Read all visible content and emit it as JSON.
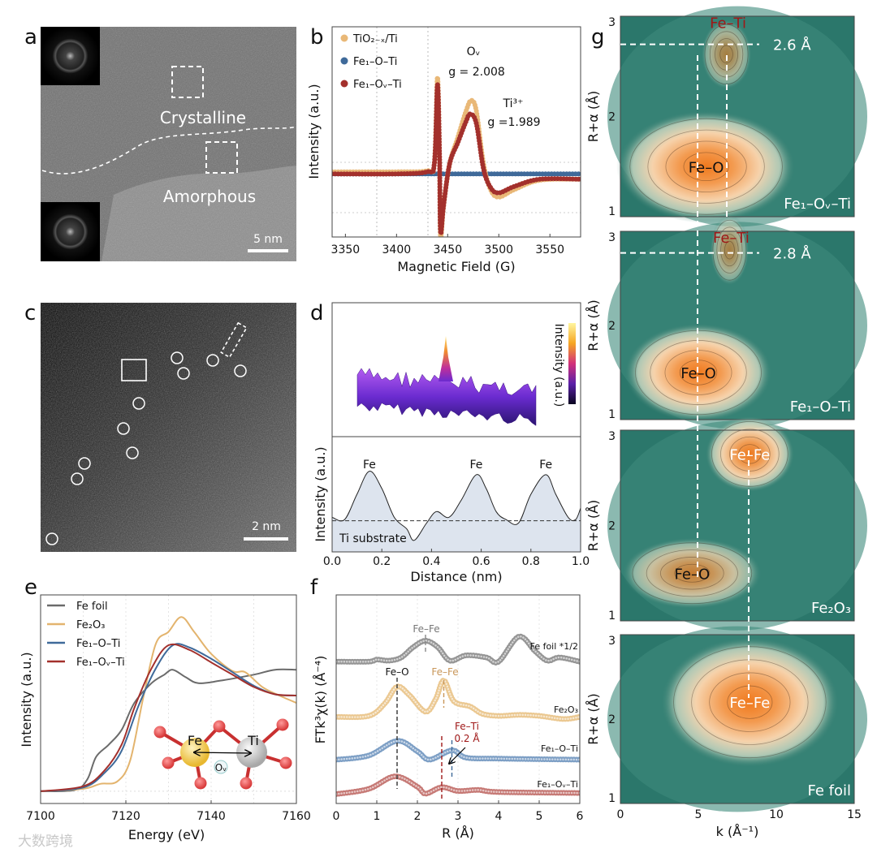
{
  "figure": {
    "panel_labels": [
      "a",
      "b",
      "c",
      "d",
      "e",
      "f",
      "g"
    ]
  },
  "panel_a": {
    "crystalline": "Crystalline",
    "amorphous": "Amorphous",
    "scale_bar": "5 nm"
  },
  "panel_c": {
    "scale_bar": "2 nm"
  },
  "panel_d": {
    "colorbar_label": "Intensity (a.u.)"
  },
  "panel_e_inset": {
    "fe": "Fe",
    "ti": "Ti",
    "vacancy": "Oᵥ"
  },
  "watermark": "大数跨境",
  "colors": {
    "tio2": "#e9b877",
    "fe1o": "#3f6a9a",
    "fe1ov": "#a3302c",
    "fefoil": "#6b6b6b",
    "fe2o3": "#e3b46e",
    "feti_label": "#a01818",
    "teal": "#2b776b",
    "orange": "#f07a1e"
  },
  "chart_data": [
    {
      "panel": "b",
      "type": "scatter",
      "xlabel": "Magnetic Field (G)",
      "ylabel": "Intensity (a.u.)",
      "xlim": [
        3337,
        3580
      ],
      "ylim": [
        -0.6,
        1.4
      ],
      "xticks": [
        3350,
        3400,
        3450,
        3500,
        3550
      ],
      "series": [
        {
          "name": "TiO₂₋ₓ/Ti",
          "color": "#e9b877",
          "points": [
            [
              3337,
              0.02
            ],
            [
              3400,
              0.02
            ],
            [
              3430,
              0.03
            ],
            [
              3437,
              0.1
            ],
            [
              3440,
              0.92
            ],
            [
              3442,
              0.2
            ],
            [
              3443,
              -0.6
            ],
            [
              3446,
              -0.3
            ],
            [
              3452,
              0.1
            ],
            [
              3460,
              0.35
            ],
            [
              3468,
              0.6
            ],
            [
              3473,
              0.7
            ],
            [
              3478,
              0.6
            ],
            [
              3485,
              0.1
            ],
            [
              3492,
              -0.15
            ],
            [
              3500,
              -0.22
            ],
            [
              3515,
              -0.15
            ],
            [
              3540,
              -0.06
            ],
            [
              3580,
              -0.05
            ]
          ]
        },
        {
          "name": "Fe₁–O–Ti",
          "color": "#3f6a9a",
          "points": [
            [
              3337,
              0.0
            ],
            [
              3400,
              0.0
            ],
            [
              3460,
              0.0
            ],
            [
              3520,
              0.0
            ],
            [
              3580,
              0.0
            ]
          ]
        },
        {
          "name": "Fe₁–Oᵥ–Ti",
          "color": "#a3302c",
          "points": [
            [
              3337,
              0.0
            ],
            [
              3400,
              0.0
            ],
            [
              3430,
              0.02
            ],
            [
              3437,
              0.1
            ],
            [
              3440,
              0.85
            ],
            [
              3442,
              0.2
            ],
            [
              3443,
              -0.55
            ],
            [
              3446,
              -0.3
            ],
            [
              3452,
              0.1
            ],
            [
              3460,
              0.3
            ],
            [
              3468,
              0.5
            ],
            [
              3472,
              0.57
            ],
            [
              3478,
              0.48
            ],
            [
              3485,
              0.05
            ],
            [
              3492,
              -0.13
            ],
            [
              3500,
              -0.18
            ],
            [
              3515,
              -0.12
            ],
            [
              3540,
              -0.05
            ],
            [
              3580,
              -0.05
            ]
          ]
        }
      ],
      "annotations": [
        "Oᵥ",
        "g = 2.008",
        "Ti³⁺",
        "g =1.989"
      ]
    },
    {
      "panel": "d",
      "type": "line",
      "xlabel": "Distance (nm)",
      "ylabel": "Intensity (a.u.)",
      "xlim": [
        0,
        1
      ],
      "ylim": [
        0,
        1
      ],
      "xticks": [
        "0.0",
        "0.2",
        "0.4",
        "0.6",
        "0.8",
        "1.0"
      ],
      "baseline": 0.27,
      "baseline_label": "Ti substrate",
      "peak_labels": [
        {
          "x": 0.15,
          "text": "Fe"
        },
        {
          "x": 0.58,
          "text": "Fe"
        },
        {
          "x": 0.86,
          "text": "Fe"
        }
      ],
      "points": [
        [
          0,
          0.3
        ],
        [
          0.05,
          0.28
        ],
        [
          0.1,
          0.5
        ],
        [
          0.15,
          0.7
        ],
        [
          0.2,
          0.55
        ],
        [
          0.25,
          0.3
        ],
        [
          0.3,
          0.2
        ],
        [
          0.33,
          0.1
        ],
        [
          0.38,
          0.25
        ],
        [
          0.42,
          0.35
        ],
        [
          0.47,
          0.3
        ],
        [
          0.52,
          0.45
        ],
        [
          0.58,
          0.67
        ],
        [
          0.62,
          0.55
        ],
        [
          0.66,
          0.35
        ],
        [
          0.7,
          0.28
        ],
        [
          0.75,
          0.25
        ],
        [
          0.8,
          0.5
        ],
        [
          0.86,
          0.67
        ],
        [
          0.9,
          0.5
        ],
        [
          0.95,
          0.3
        ],
        [
          0.98,
          0.28
        ],
        [
          1.0,
          0.38
        ]
      ]
    },
    {
      "panel": "e",
      "type": "line",
      "xlabel": "Energy (eV)",
      "ylabel": "Intensity (a.u.)",
      "xlim": [
        7100,
        7160
      ],
      "ylim": [
        -0.1,
        1.6
      ],
      "xticks": [
        7100,
        7120,
        7140,
        7160
      ],
      "series": [
        {
          "name": "Fe foil",
          "color": "#6b6b6b",
          "points": [
            [
              7100,
              0
            ],
            [
              7108,
              0.01
            ],
            [
              7111,
              0.1
            ],
            [
              7113,
              0.28
            ],
            [
              7116,
              0.38
            ],
            [
              7119,
              0.5
            ],
            [
              7122,
              0.72
            ],
            [
              7126,
              0.88
            ],
            [
              7129,
              0.95
            ],
            [
              7131,
              0.99
            ],
            [
              7134,
              0.93
            ],
            [
              7137,
              0.88
            ],
            [
              7142,
              0.9
            ],
            [
              7150,
              0.95
            ],
            [
              7155,
              0.99
            ],
            [
              7160,
              0.99
            ]
          ]
        },
        {
          "name": "Fe₂O₃",
          "color": "#e3b46e",
          "points": [
            [
              7100,
              0
            ],
            [
              7110,
              0.02
            ],
            [
              7114,
              0.06
            ],
            [
              7118,
              0.08
            ],
            [
              7121,
              0.25
            ],
            [
              7124,
              0.75
            ],
            [
              7127,
              1.2
            ],
            [
              7130,
              1.3
            ],
            [
              7133,
              1.42
            ],
            [
              7136,
              1.3
            ],
            [
              7140,
              1.12
            ],
            [
              7145,
              0.98
            ],
            [
              7148,
              0.97
            ],
            [
              7152,
              0.85
            ],
            [
              7156,
              0.78
            ],
            [
              7160,
              0.72
            ]
          ]
        },
        {
          "name": "Fe₁–O–Ti",
          "color": "#3f6a9a",
          "points": [
            [
              7100,
              0
            ],
            [
              7110,
              0.03
            ],
            [
              7115,
              0.15
            ],
            [
              7119,
              0.33
            ],
            [
              7123,
              0.7
            ],
            [
              7127,
              1.0
            ],
            [
              7131,
              1.19
            ],
            [
              7135,
              1.17
            ],
            [
              7140,
              1.08
            ],
            [
              7145,
              0.97
            ],
            [
              7150,
              0.86
            ],
            [
              7155,
              0.79
            ],
            [
              7160,
              0.78
            ]
          ]
        },
        {
          "name": "Fe₁–Oᵥ–Ti",
          "color": "#a3302c",
          "points": [
            [
              7100,
              0
            ],
            [
              7110,
              0.04
            ],
            [
              7115,
              0.17
            ],
            [
              7119,
              0.38
            ],
            [
              7122,
              0.68
            ],
            [
              7126,
              1.0
            ],
            [
              7130,
              1.19
            ],
            [
              7135,
              1.15
            ],
            [
              7140,
              1.05
            ],
            [
              7145,
              0.95
            ],
            [
              7150,
              0.85
            ],
            [
              7155,
              0.79
            ],
            [
              7160,
              0.78
            ]
          ]
        }
      ]
    },
    {
      "panel": "f",
      "type": "scatter",
      "xlabel": "R (Å)",
      "ylabel": "FTk³χ(k) (Å⁻⁴)",
      "xlim": [
        0,
        6
      ],
      "ylim": [
        0,
        10
      ],
      "xticks": [
        0,
        1,
        2,
        3,
        4,
        5,
        6
      ],
      "series": [
        {
          "name": "Fe foil *1/2",
          "color": "#8a8a8a",
          "points": [
            [
              0,
              6.8
            ],
            [
              0.8,
              6.8
            ],
            [
              1.0,
              6.9
            ],
            [
              1.3,
              6.85
            ],
            [
              1.6,
              7.0
            ],
            [
              1.9,
              7.5
            ],
            [
              2.2,
              7.8
            ],
            [
              2.5,
              7.5
            ],
            [
              2.8,
              6.85
            ],
            [
              3.2,
              7.1
            ],
            [
              3.7,
              7.0
            ],
            [
              4.0,
              6.8
            ],
            [
              4.5,
              8.0
            ],
            [
              4.9,
              7.3
            ],
            [
              5.2,
              6.85
            ],
            [
              5.5,
              7.0
            ],
            [
              6,
              6.8
            ]
          ]
        },
        {
          "name": "Fe₂O₃",
          "color": "#e9c285",
          "points": [
            [
              0,
              4.15
            ],
            [
              0.8,
              4.2
            ],
            [
              1.2,
              4.8
            ],
            [
              1.5,
              5.6
            ],
            [
              1.8,
              5.2
            ],
            [
              2.2,
              4.4
            ],
            [
              2.45,
              5.0
            ],
            [
              2.65,
              5.9
            ],
            [
              2.9,
              4.9
            ],
            [
              3.3,
              4.65
            ],
            [
              3.6,
              4.3
            ],
            [
              4.0,
              4.2
            ],
            [
              4.5,
              4.25
            ],
            [
              5,
              4.2
            ],
            [
              5.6,
              4.05
            ],
            [
              6,
              4.15
            ]
          ]
        },
        {
          "name": "Fe₁–O–Ti",
          "color": "#6f95bf",
          "points": [
            [
              0,
              2.1
            ],
            [
              0.8,
              2.3
            ],
            [
              1.5,
              3.0
            ],
            [
              2.0,
              2.5
            ],
            [
              2.3,
              2.1
            ],
            [
              2.85,
              2.55
            ],
            [
              3.2,
              2.2
            ],
            [
              4,
              2.15
            ],
            [
              6,
              2.1
            ]
          ]
        },
        {
          "name": "Fe₁–Oᵥ–Ti",
          "color": "#c06a66",
          "points": [
            [
              0,
              0.45
            ],
            [
              0.8,
              0.7
            ],
            [
              1.45,
              1.3
            ],
            [
              2.0,
              0.8
            ],
            [
              2.2,
              0.47
            ],
            [
              2.6,
              0.78
            ],
            [
              3.0,
              0.6
            ],
            [
              3.5,
              0.65
            ],
            [
              4,
              0.55
            ],
            [
              6,
              0.5
            ]
          ]
        }
      ],
      "annotations": [
        {
          "text": "Fe–Fe",
          "color": "#777777"
        },
        {
          "text": "Fe–O",
          "color": "#111111"
        },
        {
          "text": "Fe–Fe",
          "color": "#c9975a"
        },
        {
          "text": "Fe–Ti",
          "color": "#a01818"
        },
        {
          "text": "0.2 Å",
          "color": "#a01818"
        }
      ]
    },
    {
      "panel": "g",
      "type": "heatmap",
      "xlabel": "k (Å⁻¹)",
      "ylabel": "R+α (Å)",
      "xlim": [
        0,
        15
      ],
      "ylim": [
        1,
        3
      ],
      "xticks": [
        0,
        5,
        10,
        15
      ],
      "yticks": [
        1,
        2,
        3
      ],
      "panels": [
        {
          "sample": "Fe₁–Oᵥ–Ti",
          "distance_marker": "2.6 Å",
          "peaks": [
            {
              "label": "Fe–O",
              "k": 5.5,
              "R": 1.5,
              "spread_k": 4.6,
              "spread_R": 0.45,
              "intensity": 1.0
            },
            {
              "label": "Fe–Ti",
              "k": 6.8,
              "R": 2.62,
              "spread_k": 1.3,
              "spread_R": 0.28,
              "intensity": 0.35
            }
          ]
        },
        {
          "sample": "Fe₁–O–Ti",
          "distance_marker": "2.8 Å",
          "peaks": [
            {
              "label": "Fe–O",
              "k": 5.0,
              "R": 1.5,
              "spread_k": 3.8,
              "spread_R": 0.42,
              "intensity": 1.0
            },
            {
              "label": "Fe–Ti",
              "k": 7.0,
              "R": 2.8,
              "spread_k": 1.0,
              "spread_R": 0.3,
              "intensity": 0.35
            }
          ]
        },
        {
          "sample": "Fe₂O₃",
          "peaks": [
            {
              "label": "Fe–Fe",
              "k": 8.3,
              "R": 2.75,
              "spread_k": 2.3,
              "spread_R": 0.32,
              "intensity": 0.9
            },
            {
              "label": "Fe–O",
              "k": 4.6,
              "R": 1.5,
              "spread_k": 3.6,
              "spread_R": 0.3,
              "intensity": 0.6
            }
          ]
        },
        {
          "sample": "Fe foil",
          "peaks": [
            {
              "label": "Fe–Fe",
              "k": 8.3,
              "R": 2.2,
              "spread_k": 4.6,
              "spread_R": 0.62,
              "intensity": 1.0
            }
          ]
        }
      ]
    }
  ]
}
